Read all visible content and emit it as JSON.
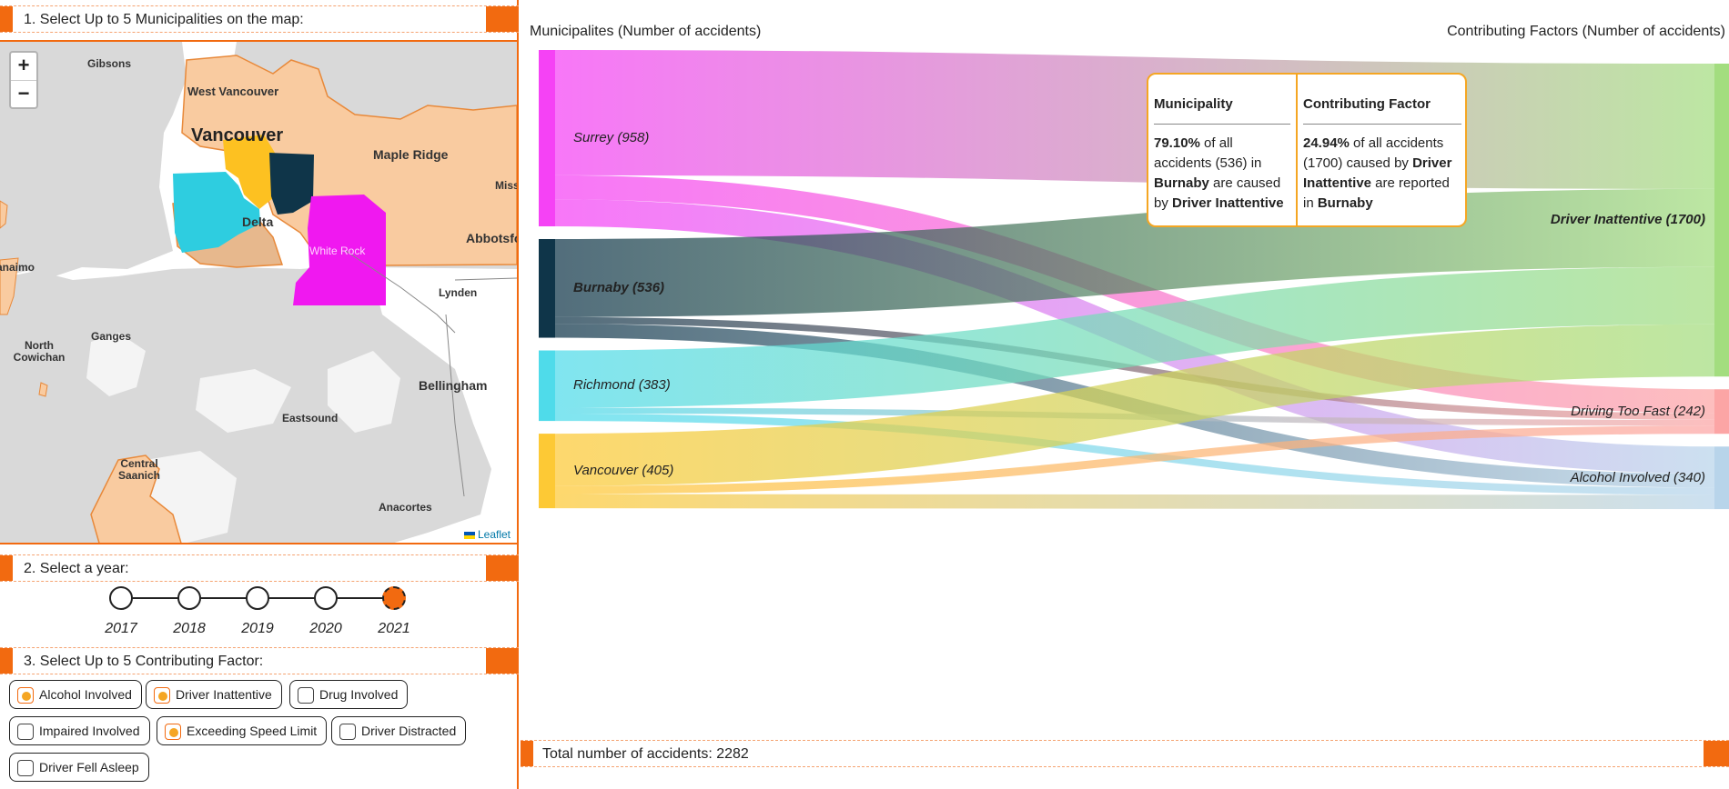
{
  "steps": {
    "step1": "1. Select Up to 5 Municipalities on the map:",
    "step2": "2. Select a year:",
    "step3": "3. Select Up to 5 Contributing Factor:"
  },
  "map": {
    "zoom_in": "+",
    "zoom_out": "−",
    "attribution": "Leaflet",
    "places": [
      "Gibsons",
      "West Vancouver",
      "Vancouver",
      "Maple Ridge",
      "Mission",
      "Delta",
      "Abbotsford",
      "White Rock",
      "Nanaimo",
      "Lynden",
      "Ganges",
      "North Cowichan",
      "Bellingham",
      "Eastsound",
      "Central Saanich",
      "Anacortes"
    ],
    "colors": {
      "land": "#f9cba0",
      "water": "#d9d9d9",
      "surrey": "#f018f0",
      "burnaby": "#0f3549",
      "richmond": "#2ecde0",
      "vancouver": "#fdc121"
    }
  },
  "years": {
    "items": [
      "2017",
      "2018",
      "2019",
      "2020",
      "2021"
    ],
    "selected": "2021"
  },
  "factors": [
    {
      "label": "Alcohol Involved",
      "checked": true
    },
    {
      "label": "Driver Inattentive",
      "checked": true
    },
    {
      "label": "Drug Involved",
      "checked": false
    },
    {
      "label": "Impaired Involved",
      "checked": false
    },
    {
      "label": "Exceeding Speed Limit",
      "checked": true
    },
    {
      "label": "Driver Distracted",
      "checked": false
    },
    {
      "label": "Driver Fell Asleep",
      "checked": false
    }
  ],
  "sankey": {
    "left_title": "Municipalites (Number of accidents)",
    "right_title": "Contributing Factors (Number of accidents)",
    "municipalities": [
      {
        "name": "Surrey",
        "count": 958,
        "label": "Surrey (958)",
        "color": "#f542f5"
      },
      {
        "name": "Burnaby",
        "count": 536,
        "label": "Burnaby (536)",
        "color": "#0f3549"
      },
      {
        "name": "Richmond",
        "count": 383,
        "label": "Richmond (383)",
        "color": "#4fdbea"
      },
      {
        "name": "Vancouver",
        "count": 405,
        "label": "Vancouver (405)",
        "color": "#fdc935"
      }
    ],
    "factors": [
      {
        "name": "Driver Inattentive",
        "count": 1700,
        "label": "Driver Inattentive (1700)",
        "color": "#a3dd7f"
      },
      {
        "name": "Driving Too Fast",
        "count": 242,
        "label": "Driving Too Fast (242)",
        "color": "#fca5a5"
      },
      {
        "name": "Alcohol Involved",
        "count": 340,
        "label": "Alcohol Involved (340)",
        "color": "#b8d4ea"
      }
    ],
    "links": [
      {
        "source": "Surrey",
        "target": "Driver Inattentive",
        "value": 681
      },
      {
        "source": "Surrey",
        "target": "Driving Too Fast",
        "value": 130
      },
      {
        "source": "Surrey",
        "target": "Alcohol Involved",
        "value": 147
      },
      {
        "source": "Burnaby",
        "target": "Driver Inattentive",
        "value": 424
      },
      {
        "source": "Burnaby",
        "target": "Driving Too Fast",
        "value": 36
      },
      {
        "source": "Burnaby",
        "target": "Alcohol Involved",
        "value": 76
      },
      {
        "source": "Richmond",
        "target": "Driver Inattentive",
        "value": 311
      },
      {
        "source": "Richmond",
        "target": "Driving Too Fast",
        "value": 32
      },
      {
        "source": "Richmond",
        "target": "Alcohol Involved",
        "value": 40
      },
      {
        "source": "Vancouver",
        "target": "Driver Inattentive",
        "value": 284
      },
      {
        "source": "Vancouver",
        "target": "Driving Too Fast",
        "value": 44
      },
      {
        "source": "Vancouver",
        "target": "Alcohol Involved",
        "value": 77
      }
    ],
    "selected_municipality": "Burnaby",
    "selected_factor": "Driver Inattentive"
  },
  "tooltip": {
    "col1_title": "Municipality",
    "col1_pct": "79.10%",
    "col1_text1": " of all accidents (536) in ",
    "col1_muni": "Burnaby",
    "col1_text2": " are caused by ",
    "col1_factor": "Driver Inattentive",
    "col2_title": "Contributing Factor",
    "col2_pct": "24.94%",
    "col2_text1": " of all accidents (1700) caused by ",
    "col2_factor": "Driver Inattentive",
    "col2_text2": " are reported in ",
    "col2_muni": "Burnaby"
  },
  "total": {
    "label": "Total number of accidents:",
    "value": "2282"
  }
}
